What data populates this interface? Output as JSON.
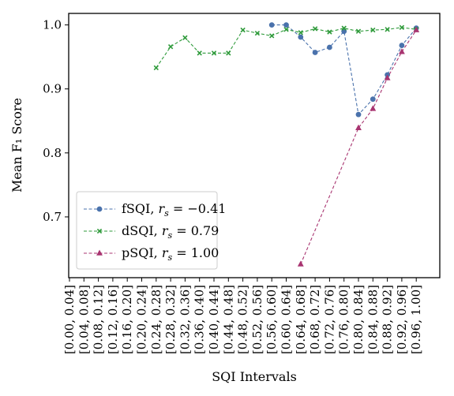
{
  "chart_data": {
    "type": "line",
    "xlabel": "SQI Intervals",
    "ylabel": "Mean F₁ Score",
    "ylim": [
      0.605,
      1.018
    ],
    "yticks": [
      0.7,
      0.8,
      0.9,
      1.0
    ],
    "ytick_labels": [
      "0.7",
      "0.8",
      "0.9",
      "1.0"
    ],
    "grid": false,
    "legend_position": "lower-left",
    "categories": [
      "[0.00, 0.04]",
      "[0.04, 0.08]",
      "[0.08, 0.12]",
      "[0.12, 0.16]",
      "[0.16, 0.20]",
      "[0.20, 0.24]",
      "[0.24, 0.28]",
      "[0.28, 0.32]",
      "[0.32, 0.36]",
      "[0.36, 0.40]",
      "[0.40, 0.44]",
      "[0.44, 0.48]",
      "[0.48, 0.52]",
      "[0.52, 0.56]",
      "[0.56, 0.60]",
      "[0.60, 0.64]",
      "[0.64, 0.68]",
      "[0.68, 0.72]",
      "[0.72, 0.76]",
      "[0.76, 0.80]",
      "[0.80, 0.84]",
      "[0.84, 0.88]",
      "[0.88, 0.92]",
      "[0.92, 0.96]",
      "[0.96, 1.00]"
    ],
    "series": [
      {
        "name": "fSQI",
        "legend": {
          "name": "fSQI, ",
          "r": "r",
          "sub": "s",
          "eq": " = −0.41"
        },
        "color": "#4a72ac",
        "marker": "circle",
        "values": [
          null,
          null,
          null,
          null,
          null,
          null,
          null,
          null,
          null,
          null,
          null,
          null,
          null,
          null,
          1.0,
          1.0,
          0.981,
          0.957,
          0.965,
          0.99,
          0.86,
          0.884,
          0.922,
          0.968,
          0.995
        ]
      },
      {
        "name": "dSQI",
        "legend": {
          "name": "dSQI, ",
          "r": "r",
          "sub": "s",
          "eq": " = 0.79"
        },
        "color": "#2e9a3a",
        "marker": "x",
        "values": [
          null,
          null,
          null,
          null,
          null,
          null,
          0.933,
          0.966,
          0.98,
          0.956,
          0.956,
          0.956,
          0.992,
          0.987,
          0.983,
          0.993,
          0.988,
          0.994,
          0.989,
          0.995,
          0.99,
          0.992,
          0.993,
          0.996,
          0.993
        ]
      },
      {
        "name": "pSQI",
        "legend": {
          "name": "pSQI, ",
          "r": "r",
          "sub": "s",
          "eq": " = 1.00"
        },
        "color": "#a83470",
        "marker": "triangle",
        "values": [
          null,
          null,
          null,
          null,
          null,
          null,
          null,
          null,
          null,
          null,
          null,
          null,
          null,
          null,
          null,
          null,
          0.626,
          null,
          null,
          null,
          0.839,
          0.869,
          0.917,
          0.958,
          0.992
        ]
      }
    ]
  }
}
